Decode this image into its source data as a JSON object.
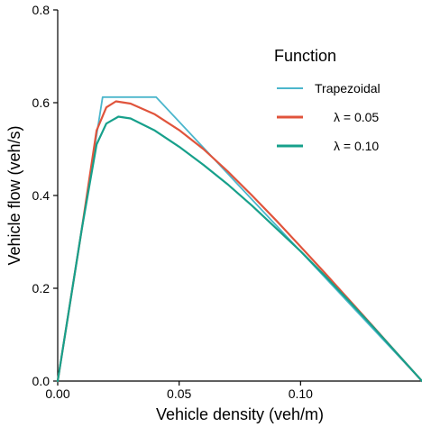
{
  "chart_data": {
    "type": "line",
    "title": "",
    "xlabel": "Vehicle density (veh/m)",
    "ylabel": "Vehicle flow (veh/s)",
    "xlim": [
      0,
      0.15
    ],
    "ylim": [
      0,
      0.8
    ],
    "x_ticks": [
      0,
      0.05,
      0.1
    ],
    "x_tick_labels": [
      "0.00",
      "0.05",
      "0.10"
    ],
    "y_ticks": [
      0,
      0.2,
      0.4,
      0.6,
      0.8
    ],
    "y_tick_labels": [
      "0.0",
      "0.2",
      "0.4",
      "0.6",
      "0.8"
    ],
    "grid": false,
    "legend": {
      "title": "Function",
      "placement": "top-right"
    },
    "series": [
      {
        "name": "Trapezoidal",
        "color": "#4bb6cc",
        "x": [
          0,
          0.0185,
          0.0405,
          0.15
        ],
        "y": [
          0,
          0.612,
          0.612,
          0
        ]
      },
      {
        "name": "λ = 0.05",
        "color": "#e0543c",
        "x": [
          0,
          0.01,
          0.016,
          0.02,
          0.024,
          0.03,
          0.04,
          0.05,
          0.06,
          0.07,
          0.08,
          0.09,
          0.1,
          0.11,
          0.12,
          0.13,
          0.14,
          0.15
        ],
        "y": [
          0,
          0.33,
          0.54,
          0.59,
          0.603,
          0.598,
          0.575,
          0.541,
          0.5,
          0.452,
          0.4,
          0.346,
          0.29,
          0.233,
          0.175,
          0.117,
          0.058,
          0
        ]
      },
      {
        "name": "λ = 0.10",
        "color": "#17a08b",
        "x": [
          0,
          0.01,
          0.016,
          0.02,
          0.025,
          0.03,
          0.04,
          0.05,
          0.06,
          0.07,
          0.08,
          0.09,
          0.1,
          0.11,
          0.12,
          0.13,
          0.14,
          0.15
        ],
        "y": [
          0,
          0.33,
          0.51,
          0.555,
          0.57,
          0.566,
          0.54,
          0.505,
          0.466,
          0.424,
          0.378,
          0.329,
          0.28,
          0.227,
          0.172,
          0.116,
          0.058,
          0
        ]
      }
    ]
  }
}
